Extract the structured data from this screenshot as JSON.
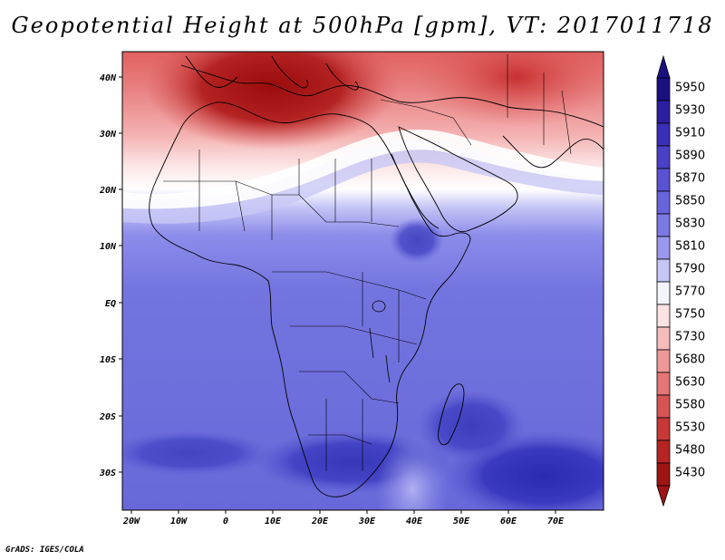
{
  "title": "Geopotential Height at 500hPa [gpm], VT: 2017011718",
  "credit": "GrADS: IGES/COLA",
  "lat_labels": [
    "40N",
    "30N",
    "20N",
    "10N",
    "EQ",
    "10S",
    "20S",
    "30S"
  ],
  "lon_labels": [
    "20W",
    "10W",
    "0",
    "10E",
    "20E",
    "30E",
    "40E",
    "50E",
    "60E",
    "70E"
  ],
  "colorbar": {
    "levels": [
      "5950",
      "5930",
      "5910",
      "5890",
      "5870",
      "5850",
      "5830",
      "5810",
      "5790",
      "5770",
      "5750",
      "5730",
      "5680",
      "5630",
      "5580",
      "5530",
      "5480",
      "5430"
    ],
    "colors": [
      "#1a1080",
      "#2a1fa0",
      "#3a2fb8",
      "#4a40c8",
      "#5a52d2",
      "#6a64dc",
      "#7c78e4",
      "#9a98ee",
      "#c4c6f6",
      "#f4f4fc",
      "#fce2e2",
      "#f6bcbc",
      "#ee9898",
      "#e47676",
      "#d85454",
      "#c83838",
      "#b82424",
      "#a01414"
    ]
  },
  "map": {
    "region": "Africa and surroundings, 20W-80E, 37S-45N",
    "palette": {
      "dark_red": "#a81010",
      "red": "#d85050",
      "pink": "#f0a0a0",
      "white": "#f8f8fc",
      "light_blue": "#aaaaf0",
      "blue": "#7070e0",
      "mid_blue": "#5a5ad8",
      "dark_blue": "#3030b8"
    }
  }
}
